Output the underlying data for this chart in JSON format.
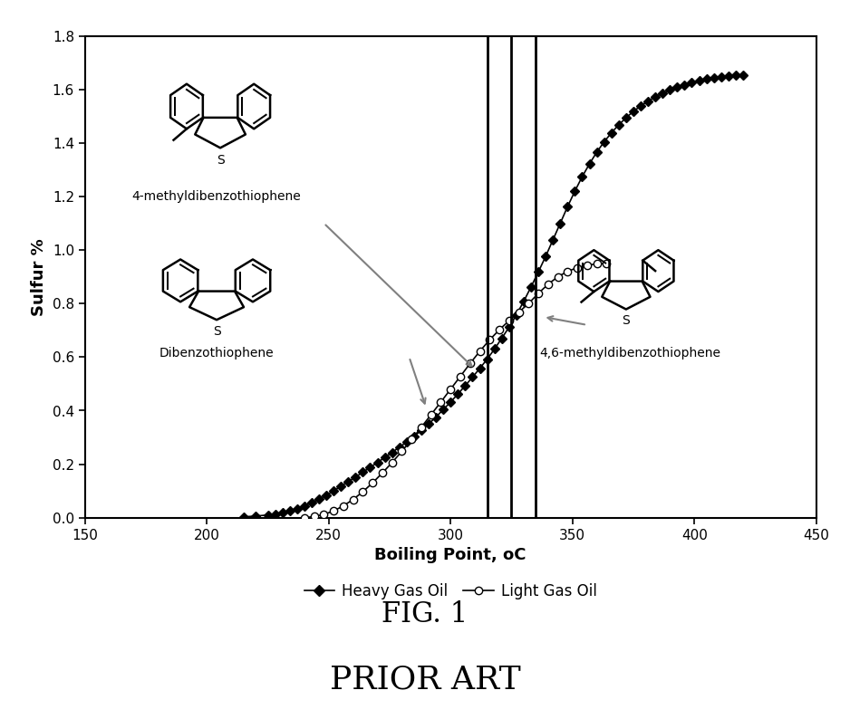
{
  "title": "FIG. 1",
  "subtitle": "PRIOR ART",
  "xlabel": "Boiling Point, oC",
  "ylabel": "Sulfur %",
  "xlim": [
    150,
    450
  ],
  "ylim": [
    0,
    1.8
  ],
  "xticks": [
    150,
    200,
    250,
    300,
    350,
    400,
    450
  ],
  "yticks": [
    0,
    0.2,
    0.4,
    0.6,
    0.8,
    1.0,
    1.2,
    1.4,
    1.6,
    1.8
  ],
  "vlines": [
    315,
    325,
    335
  ],
  "bg_color": "#ffffff",
  "heavy_gas_oil_x": [
    215,
    220,
    225,
    228,
    231,
    234,
    237,
    240,
    243,
    246,
    249,
    252,
    255,
    258,
    261,
    264,
    267,
    270,
    273,
    276,
    279,
    282,
    285,
    288,
    291,
    294,
    297,
    300,
    303,
    306,
    309,
    312,
    315,
    318,
    321,
    324,
    327,
    330,
    333,
    336,
    339,
    342,
    345,
    348,
    351,
    354,
    357,
    360,
    363,
    366,
    369,
    372,
    375,
    378,
    381,
    384,
    387,
    390,
    393,
    396,
    399,
    402,
    405,
    408,
    411,
    414,
    417,
    420
  ],
  "heavy_gas_oil_y": [
    0.003,
    0.006,
    0.01,
    0.014,
    0.019,
    0.026,
    0.034,
    0.044,
    0.056,
    0.069,
    0.084,
    0.1,
    0.117,
    0.134,
    0.152,
    0.17,
    0.188,
    0.206,
    0.225,
    0.244,
    0.263,
    0.283,
    0.304,
    0.326,
    0.35,
    0.376,
    0.404,
    0.432,
    0.462,
    0.493,
    0.525,
    0.558,
    0.592,
    0.63,
    0.67,
    0.712,
    0.758,
    0.808,
    0.862,
    0.918,
    0.976,
    1.038,
    1.1,
    1.162,
    1.22,
    1.274,
    1.322,
    1.366,
    1.404,
    1.438,
    1.468,
    1.494,
    1.518,
    1.538,
    1.556,
    1.572,
    1.586,
    1.598,
    1.608,
    1.617,
    1.625,
    1.632,
    1.638,
    1.643,
    1.647,
    1.65,
    1.652,
    1.653
  ],
  "light_gas_oil_x": [
    240,
    244,
    248,
    252,
    256,
    260,
    264,
    268,
    272,
    276,
    280,
    284,
    288,
    292,
    296,
    300,
    304,
    308,
    312,
    316,
    320,
    324,
    328,
    332,
    336,
    340,
    344,
    348,
    352,
    356,
    360,
    364
  ],
  "light_gas_oil_y": [
    0.0,
    0.004,
    0.012,
    0.025,
    0.044,
    0.068,
    0.097,
    0.13,
    0.167,
    0.206,
    0.248,
    0.292,
    0.338,
    0.385,
    0.432,
    0.48,
    0.528,
    0.576,
    0.622,
    0.664,
    0.702,
    0.736,
    0.768,
    0.8,
    0.838,
    0.872,
    0.9,
    0.92,
    0.934,
    0.943,
    0.948,
    0.95
  ]
}
